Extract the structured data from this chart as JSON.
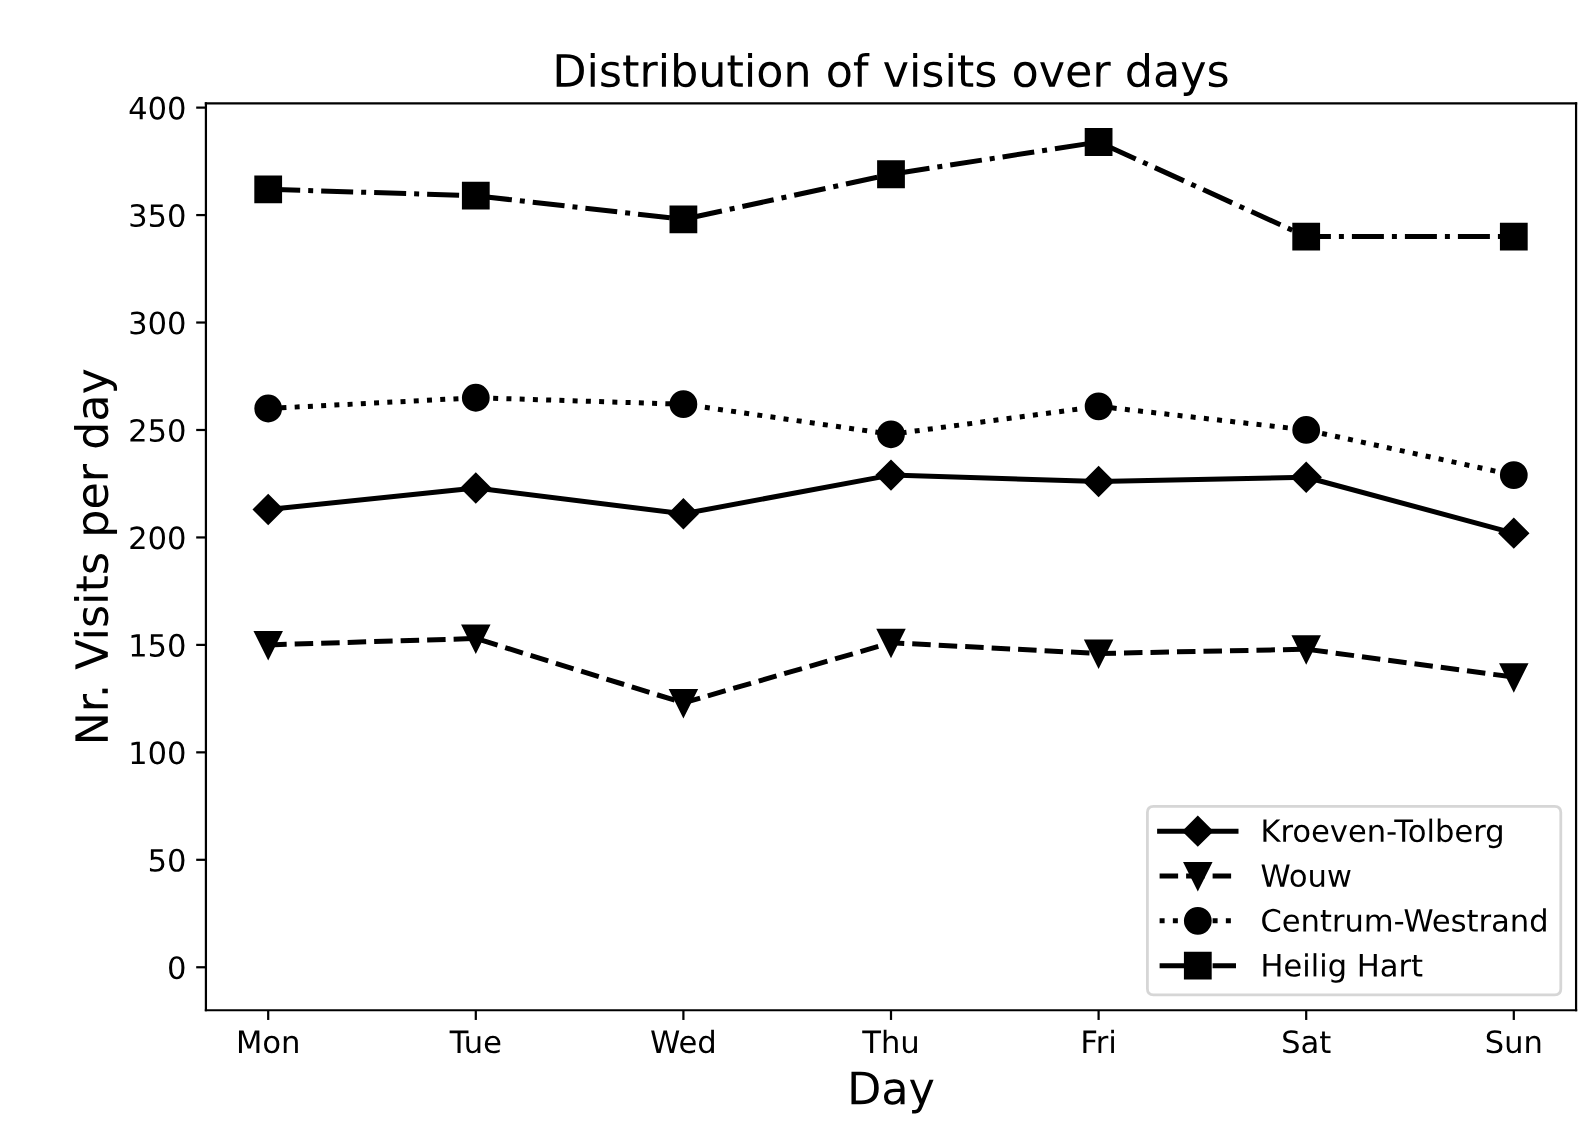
{
  "chart_data": {
    "type": "line",
    "title": "Distribution of visits over days",
    "xlabel": "Day",
    "ylabel": "Nr. Visits per day",
    "categories": [
      "Mon",
      "Tue",
      "Wed",
      "Thu",
      "Fri",
      "Sat",
      "Sun"
    ],
    "series": [
      {
        "name": "Kroeven-Tolberg",
        "color": "#000000",
        "marker": "diamond",
        "line_style": "solid",
        "values": [
          213,
          223,
          211,
          229,
          226,
          228,
          202
        ]
      },
      {
        "name": "Wouw",
        "color": "#000000",
        "marker": "triangle_down",
        "line_style": "dashed",
        "values": [
          150,
          153,
          123,
          151,
          146,
          148,
          135
        ]
      },
      {
        "name": "Centrum-Westrand",
        "color": "#000000",
        "marker": "circle",
        "line_style": "dotted",
        "values": [
          260,
          265,
          262,
          248,
          261,
          250,
          229
        ]
      },
      {
        "name": "Heilig Hart",
        "color": "#000000",
        "marker": "square",
        "line_style": "dashdot",
        "values": [
          362,
          359,
          348,
          369,
          384,
          340,
          340
        ]
      }
    ],
    "ylim": [
      -20,
      402
    ],
    "yticks": [
      0,
      50,
      100,
      150,
      200,
      250,
      300,
      350,
      400
    ],
    "grid": false,
    "legend": "bottom right"
  }
}
